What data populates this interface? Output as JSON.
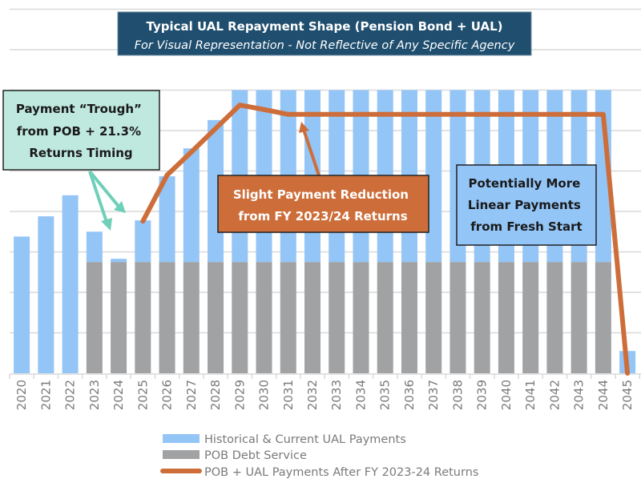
{
  "chart_data": {
    "type": "bar",
    "stacked": true,
    "title": "Typical UAL Repayment Shape (Pension Bond + UAL)",
    "subtitle": "For Visual Representation - Not Reflective of Any Specific Agency",
    "xlabel": "",
    "ylabel": "",
    "ylim": [
      0,
      9
    ],
    "grid": true,
    "y_tick_labels_shown": false,
    "legend_position": "bottom",
    "categories": [
      "2020",
      "2021",
      "2022",
      "2023",
      "2024",
      "2025",
      "2026",
      "2027",
      "2028",
      "2029",
      "2030",
      "2031",
      "2032",
      "2033",
      "2034",
      "2035",
      "2036",
      "2037",
      "2038",
      "2039",
      "2040",
      "2041",
      "2042",
      "2043",
      "2044",
      "2045"
    ],
    "series": [
      {
        "name": "POB Debt Service",
        "kind": "bar",
        "color": "#a0a2a4",
        "values": [
          0,
          0,
          0,
          2.75,
          2.75,
          2.75,
          2.75,
          2.75,
          2.75,
          2.75,
          2.75,
          2.75,
          2.75,
          2.75,
          2.75,
          2.75,
          2.75,
          2.75,
          2.75,
          2.75,
          2.75,
          2.75,
          2.75,
          2.75,
          2.75,
          0
        ]
      },
      {
        "name": "Historical & Current UAL Payments",
        "kind": "bar",
        "color": "#93c5f7",
        "values": [
          3.38,
          3.88,
          4.4,
          0.75,
          0.08,
          1.03,
          2.12,
          2.81,
          3.51,
          4.25,
          4.25,
          4.25,
          4.25,
          4.25,
          4.25,
          4.25,
          4.25,
          4.25,
          4.25,
          4.25,
          4.25,
          4.25,
          4.25,
          4.25,
          4.25,
          0.55
        ]
      },
      {
        "name": "POB + UAL Payments After FY 2023-24 Returns",
        "kind": "line",
        "color": "#cd6e3a",
        "values": [
          null,
          null,
          null,
          null,
          null,
          3.76,
          4.9,
          5.47,
          6.05,
          6.63,
          6.52,
          6.4,
          6.4,
          6.4,
          6.4,
          6.4,
          6.4,
          6.4,
          6.4,
          6.4,
          6.4,
          6.4,
          6.4,
          6.4,
          6.4,
          0
        ]
      }
    ],
    "annotations": {
      "trough": [
        "Payment “Trough”",
        "from POB + 21.3%",
        "Returns Timing"
      ],
      "reduction": [
        "Slight Payment Reduction",
        "from FY 2023/24 Returns"
      ],
      "linear": [
        "Potentially More",
        "Linear Payments",
        "from Fresh Start"
      ]
    }
  },
  "colors": {
    "title_bg": "#1f4e6e",
    "trough_bg": "#bfe9df",
    "trough_arrow": "#6fcfb8",
    "reduction_bg": "#cd6e3a",
    "linear_bg": "#93c5f7",
    "grid": "#d9d9d9"
  }
}
